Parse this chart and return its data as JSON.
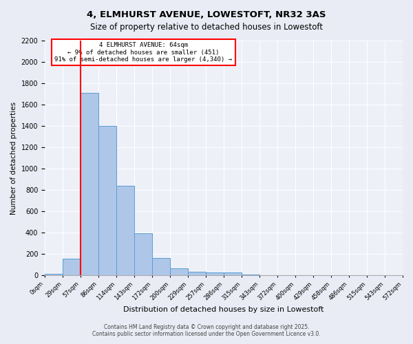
{
  "title_line1": "4, ELMHURST AVENUE, LOWESTOFT, NR32 3AS",
  "title_line2": "Size of property relative to detached houses in Lowestoft",
  "xlabel": "Distribution of detached houses by size in Lowestoft",
  "ylabel": "Number of detached properties",
  "footer_line1": "Contains HM Land Registry data © Crown copyright and database right 2025.",
  "footer_line2": "Contains public sector information licensed under the Open Government Licence v3.0.",
  "annotation_line1": "4 ELMHURST AVENUE: 64sqm",
  "annotation_line2": "← 9% of detached houses are smaller (451)",
  "annotation_line3": "91% of semi-detached houses are larger (4,340) →",
  "bar_values": [
    15,
    155,
    1710,
    1400,
    840,
    395,
    160,
    65,
    35,
    25,
    25,
    5,
    0,
    0,
    0,
    0,
    0,
    0,
    0,
    0
  ],
  "bin_labels": [
    "0sqm",
    "29sqm",
    "57sqm",
    "86sqm",
    "114sqm",
    "143sqm",
    "172sqm",
    "200sqm",
    "229sqm",
    "257sqm",
    "286sqm",
    "315sqm",
    "343sqm",
    "372sqm",
    "400sqm",
    "429sqm",
    "458sqm",
    "486sqm",
    "515sqm",
    "543sqm",
    "572sqm"
  ],
  "bar_color": "#aec6e8",
  "bar_edge_color": "#5a9fd4",
  "vline_color": "red",
  "annotation_box_color": "red",
  "annotation_box_fill": "white",
  "ylim": [
    0,
    2200
  ],
  "yticks": [
    0,
    200,
    400,
    600,
    800,
    1000,
    1200,
    1400,
    1600,
    1800,
    2000,
    2200
  ],
  "bg_color": "#eaecf5",
  "plot_bg_color": "#eef0f8",
  "grid_color": "#ffffff"
}
